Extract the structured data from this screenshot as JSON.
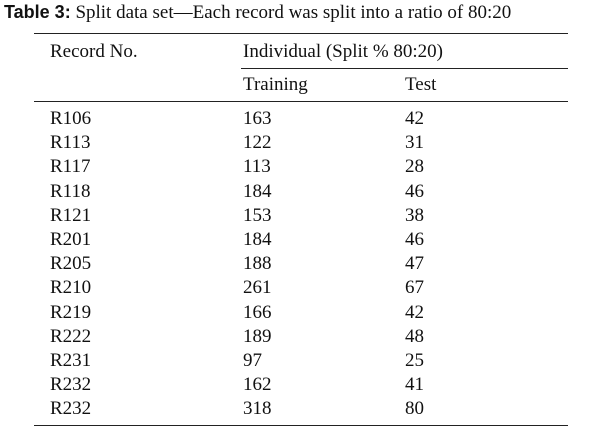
{
  "caption": {
    "label": "Table 3:",
    "text": "Split data set—Each record was split into a ratio of 80:20"
  },
  "header": {
    "record_no": "Record No.",
    "individual": "Individual (Split % 80:20)",
    "training": "Training",
    "test": "Test"
  },
  "rows": [
    {
      "record": "R106",
      "training": "163",
      "test": "42"
    },
    {
      "record": "R113",
      "training": "122",
      "test": "31"
    },
    {
      "record": "R117",
      "training": "113",
      "test": "28"
    },
    {
      "record": "R118",
      "training": "184",
      "test": "46"
    },
    {
      "record": "R121",
      "training": "153",
      "test": "38"
    },
    {
      "record": "R201",
      "training": "184",
      "test": "46"
    },
    {
      "record": "R205",
      "training": "188",
      "test": "47"
    },
    {
      "record": "R210",
      "training": "261",
      "test": "67"
    },
    {
      "record": "R219",
      "training": "166",
      "test": "42"
    },
    {
      "record": "R222",
      "training": "189",
      "test": "48"
    },
    {
      "record": "R231",
      "training": "97",
      "test": "25"
    },
    {
      "record": "R232",
      "training": "162",
      "test": "41"
    },
    {
      "record": "R232",
      "training": "318",
      "test": "80"
    }
  ]
}
